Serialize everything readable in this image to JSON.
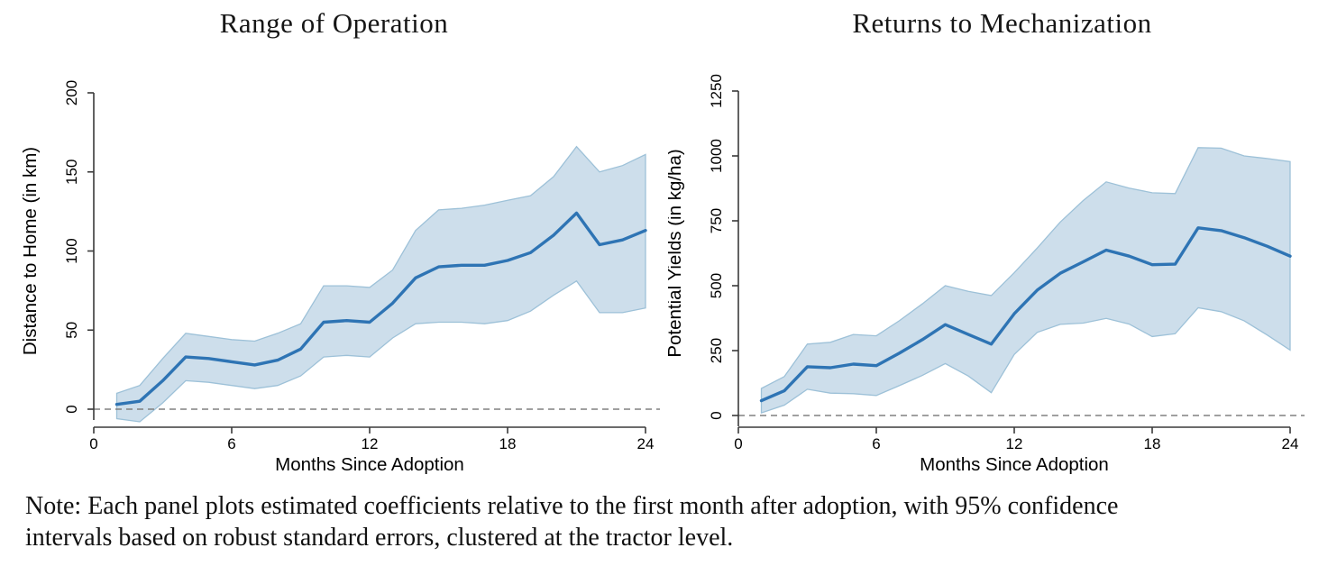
{
  "note": {
    "line1": "Note: Each panel plots estimated coefficients relative to the first month after adoption, with 95% confidence",
    "line2": "intervals based on robust standard errors, clustered at the tractor level."
  },
  "colors": {
    "coef_line": "#2e74b4",
    "band_fill": "#cddeeb",
    "band_edge": "#9dc1d8",
    "zero_dash": "#808080",
    "axis": "#3a3a3a",
    "text": "#000000",
    "background": "#ffffff"
  },
  "chart_data": [
    {
      "type": "line",
      "title": "Range of Operation",
      "xlabel": "Months Since Adoption",
      "ylabel": "Distance to Home (in km)",
      "x_ticks": [
        0,
        6,
        12,
        18,
        24
      ],
      "y_ticks": [
        0,
        50,
        100,
        150,
        200
      ],
      "xlim": [
        0,
        24
      ],
      "ylim": [
        0,
        200
      ],
      "zero_line": true,
      "grid": false,
      "legend": "none",
      "x": [
        1,
        2,
        3,
        4,
        5,
        6,
        7,
        8,
        9,
        10,
        11,
        12,
        13,
        14,
        15,
        16,
        17,
        18,
        19,
        20,
        21,
        22,
        23,
        24
      ],
      "series": [
        {
          "name": "estimated coefficient",
          "values": [
            3,
            5,
            18,
            33,
            32,
            30,
            28,
            31,
            38,
            55,
            56,
            55,
            67,
            83,
            90,
            91,
            91,
            94,
            99,
            110,
            124,
            104,
            107,
            113
          ]
        },
        {
          "name": "95% CI lower",
          "values": [
            -6,
            -8,
            4,
            18,
            17,
            15,
            13,
            15,
            21,
            33,
            34,
            33,
            45,
            54,
            55,
            55,
            54,
            56,
            62,
            72,
            81,
            61,
            61,
            64
          ]
        },
        {
          "name": "95% CI upper",
          "values": [
            10,
            15,
            32,
            48,
            46,
            44,
            43,
            48,
            54,
            78,
            78,
            77,
            88,
            113,
            126,
            127,
            129,
            132,
            135,
            147,
            166,
            150,
            154,
            161
          ]
        }
      ]
    },
    {
      "type": "line",
      "title": "Returns to Mechanization",
      "xlabel": "Months Since Adoption",
      "ylabel": "Potential Yields (in kg/ha)",
      "x_ticks": [
        0,
        6,
        12,
        18,
        24
      ],
      "y_ticks": [
        0,
        250,
        500,
        750,
        1000,
        1250
      ],
      "xlim": [
        0,
        24
      ],
      "ylim": [
        0,
        1250
      ],
      "zero_line": true,
      "grid": false,
      "legend": "none",
      "x": [
        1,
        2,
        3,
        4,
        5,
        6,
        7,
        8,
        9,
        10,
        11,
        12,
        13,
        14,
        15,
        16,
        17,
        18,
        19,
        20,
        21,
        22,
        23,
        24
      ],
      "series": [
        {
          "name": "estimated coefficient",
          "values": [
            57,
            95,
            188,
            184,
            198,
            192,
            240,
            292,
            350,
            312,
            275,
            392,
            483,
            548,
            592,
            637,
            614,
            581,
            583,
            723,
            712,
            685,
            652,
            614
          ]
        },
        {
          "name": "95% CI lower",
          "values": [
            10,
            40,
            101,
            86,
            84,
            77,
            115,
            154,
            200,
            152,
            88,
            235,
            320,
            351,
            356,
            374,
            352,
            304,
            315,
            415,
            400,
            365,
            310,
            252
          ]
        },
        {
          "name": "95% CI upper",
          "values": [
            104,
            150,
            275,
            282,
            312,
            307,
            365,
            430,
            500,
            478,
            462,
            550,
            645,
            745,
            828,
            900,
            876,
            858,
            855,
            1032,
            1030,
            1000,
            990,
            978
          ]
        }
      ]
    }
  ]
}
